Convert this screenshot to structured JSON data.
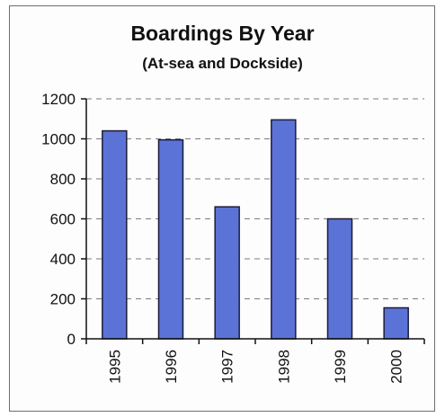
{
  "chart_data": {
    "type": "bar",
    "title": "Boardings By Year",
    "subtitle": "(At-sea and Dockside)",
    "xlabel": "",
    "ylabel": "",
    "categories": [
      "1995",
      "1996",
      "1997",
      "1998",
      "1999",
      "2000"
    ],
    "values": [
      1040,
      995,
      660,
      1095,
      600,
      155
    ],
    "ylim": [
      0,
      1200
    ],
    "yticks": [
      0,
      200,
      400,
      600,
      800,
      1000,
      1200
    ],
    "ytick_labels": [
      "0",
      "200",
      "400",
      "600",
      "800",
      "1000",
      "1200"
    ],
    "grid": "horizontal dashed",
    "legend": "none",
    "colors": {
      "bar": "#5b73d6",
      "bar_border": "#1c1c3a",
      "grid": "#7a7a7a",
      "axis": "#111111"
    }
  }
}
